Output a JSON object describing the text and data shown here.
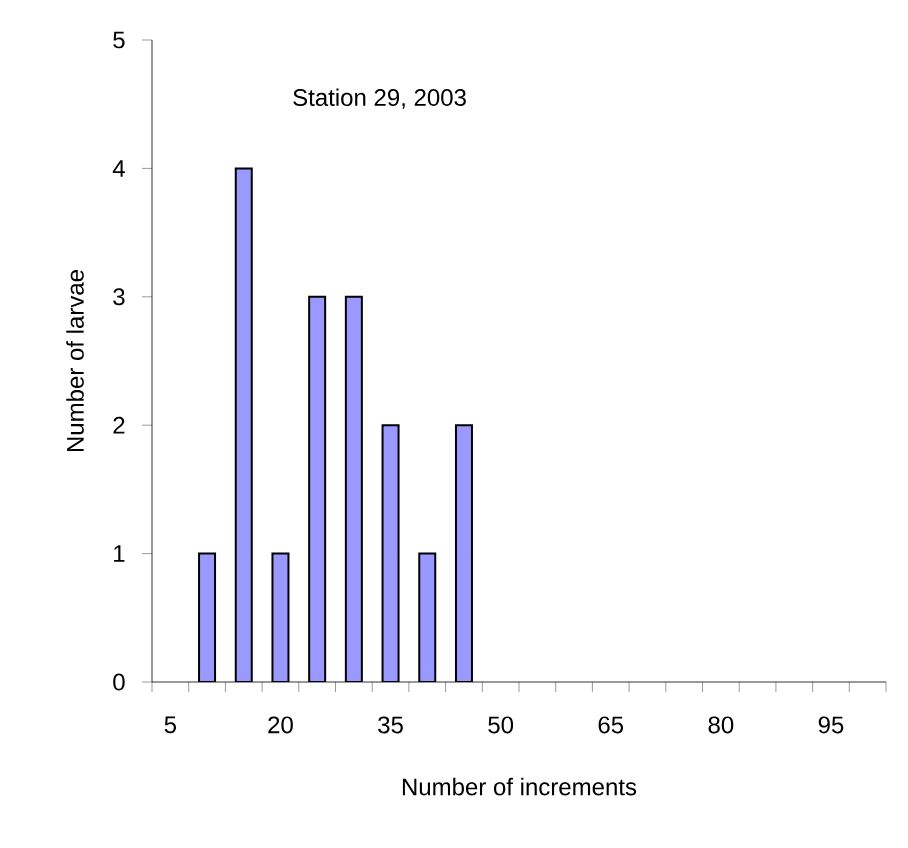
{
  "chart_data": {
    "type": "bar",
    "title": "Station 29, 2003",
    "xlabel": "Number of increments",
    "ylabel": "Number of larvae",
    "categories": [
      "5",
      null,
      null,
      "20",
      null,
      null,
      "35",
      null,
      null,
      "50",
      null,
      null,
      "65",
      null,
      null,
      "80",
      null,
      null,
      "95",
      null
    ],
    "values": [
      null,
      1,
      4,
      1,
      3,
      3,
      2,
      1,
      2,
      null,
      null,
      null,
      null,
      null,
      null,
      null,
      null,
      null,
      null,
      null
    ],
    "color": "#9999ff",
    "ylim": [
      0,
      5
    ],
    "yticks": [
      0,
      1,
      2,
      3,
      4,
      5
    ]
  }
}
